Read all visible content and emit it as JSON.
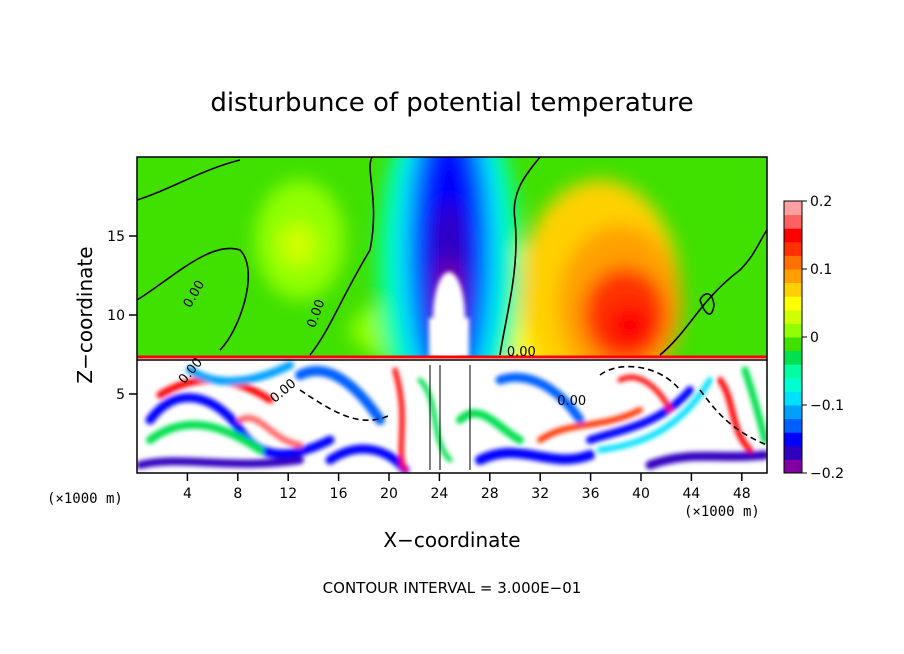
{
  "chart_data": {
    "type": "heatmap",
    "title": "disturbunce of potential temperature",
    "xlabel": "X−coordinate",
    "ylabel": "Z−coordinate",
    "x_unit": "(×1000 m)",
    "y_unit": "(×1000 m)",
    "xlim": [
      0,
      50
    ],
    "ylim": [
      0,
      20
    ],
    "x_ticks": [
      4,
      8,
      12,
      16,
      20,
      24,
      28,
      32,
      36,
      40,
      44,
      48
    ],
    "x_tick_labels": [
      "4",
      "8",
      "12",
      "16",
      "20",
      "24",
      "28",
      "32",
      "36",
      "40",
      "44",
      "48"
    ],
    "y_ticks": [
      5,
      10,
      15
    ],
    "y_tick_labels": [
      "5",
      "10",
      "15"
    ],
    "colorbar": {
      "range": [
        -0.2,
        0.2
      ],
      "tick_values": [
        0.2,
        0.1,
        0,
        -0.1,
        -0.2
      ],
      "tick_labels": [
        "0.2",
        "0.1",
        "0",
        "−0.1",
        "−0.2"
      ],
      "colors": [
        "#8000a0",
        "#3000c0",
        "#0000ff",
        "#0060ff",
        "#00a0ff",
        "#00e0ff",
        "#00ffd0",
        "#00ffa0",
        "#00e050",
        "#40e000",
        "#90ff00",
        "#d0ff00",
        "#ffff00",
        "#ffd000",
        "#ffa000",
        "#ff7000",
        "#ff3000",
        "#ff0000",
        "#ff6060",
        "#ffa0a0"
      ]
    },
    "layer_boundary_z": 7.2,
    "features": [
      {
        "name": "cold column",
        "x": 25,
        "z": 16,
        "value": -0.2
      },
      {
        "name": "warm region",
        "x": 38.5,
        "z": 11,
        "value": 0.15
      },
      {
        "name": "warm patch",
        "x": 10.5,
        "z": 14.5,
        "value": 0.05
      }
    ],
    "contour_labels": [
      {
        "text": "0.00",
        "x": 4.8,
        "z": 11.2,
        "angle": -60
      },
      {
        "text": "0.00",
        "x": 14.5,
        "z": 10,
        "angle": -70
      },
      {
        "text": "0.00",
        "x": 30.5,
        "z": 7.4,
        "angle": 0
      },
      {
        "text": "0.00",
        "x": 4.5,
        "z": 6.3,
        "angle": -50
      },
      {
        "text": "0.00",
        "x": 11.8,
        "z": 5,
        "angle": -40
      },
      {
        "text": "0.00",
        "x": 34.5,
        "z": 4.3,
        "angle": 0
      }
    ],
    "annotation": "CONTOUR INTERVAL = 3.000E−01"
  }
}
